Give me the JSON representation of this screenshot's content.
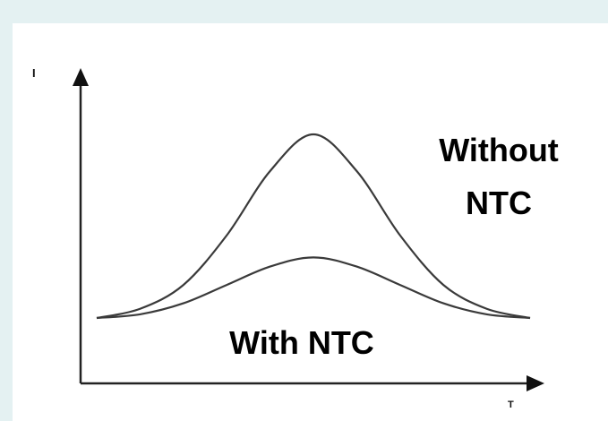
{
  "chart_data": {
    "type": "line",
    "xlabel": "T",
    "ylabel": "I",
    "grid": false,
    "series": [
      {
        "name": "Without NTC",
        "x": [
          0,
          0.1,
          0.2,
          0.3,
          0.4,
          0.5,
          0.6,
          0.7,
          0.8,
          0.9,
          1.0
        ],
        "values": [
          0,
          0.05,
          0.18,
          0.45,
          0.8,
          1.0,
          0.8,
          0.45,
          0.18,
          0.05,
          0
        ]
      },
      {
        "name": "With NTC",
        "x": [
          0,
          0.1,
          0.2,
          0.3,
          0.4,
          0.5,
          0.6,
          0.7,
          0.8,
          0.9,
          1.0
        ],
        "values": [
          0,
          0.02,
          0.08,
          0.18,
          0.28,
          0.33,
          0.28,
          0.18,
          0.08,
          0.02,
          0
        ]
      }
    ],
    "annotations": [
      "Without",
      "NTC",
      "With NTC"
    ]
  },
  "colors": {
    "background": "#e4f1f2",
    "panel": "#ffffff",
    "line": "#3a3a3a"
  }
}
